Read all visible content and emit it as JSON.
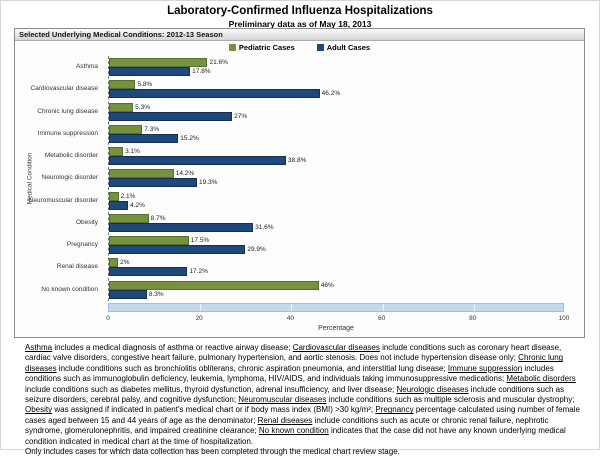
{
  "title": "Laboratory-Confirmed Influenza Hospitalizations",
  "subtitle": "Preliminary data as of May 18, 2013",
  "panel": {
    "header": "Selected Underlying Medical Conditions: 2012-13 Season"
  },
  "legend": [
    {
      "label": "Pediatric Cases",
      "color": "#76923C"
    },
    {
      "label": "Adult Cases",
      "color": "#1F497D"
    }
  ],
  "chart_data": {
    "type": "bar",
    "orientation": "horizontal",
    "title": "Selected Underlying Medical Conditions: 2012-13 Season",
    "xlabel": "Percentage",
    "ylabel": "Medical Condition",
    "xlim": [
      0,
      100
    ],
    "xticks": [
      0,
      20,
      40,
      60,
      80,
      100
    ],
    "grid": false,
    "legend_position": "top-center",
    "categories": [
      "Asthma",
      "Cardiovascular disease",
      "Chronic lung disease",
      "Immune suppression",
      "Metabolic disorder",
      "Neurologic disorder",
      "Neuromuscular disorder",
      "Obesity",
      "Pregnancy",
      "Renal disease",
      "No known condition"
    ],
    "series": [
      {
        "name": "Pediatric Cases",
        "color": "#76923C",
        "values": [
          21.6,
          5.8,
          5.3,
          7.3,
          3.1,
          14.2,
          2.1,
          8.7,
          17.5,
          2,
          46
        ],
        "labels": [
          "21.6%",
          "5.8%",
          "5.3%",
          "7.3%",
          "3.1%",
          "14.2%",
          "2.1%",
          "8.7%",
          "17.5%",
          "2%",
          "46%"
        ]
      },
      {
        "name": "Adult Cases",
        "color": "#1F497D",
        "values": [
          17.8,
          46.2,
          27,
          15.2,
          38.8,
          19.3,
          4.2,
          31.6,
          29.9,
          17.2,
          8.3
        ],
        "labels": [
          "17.8%",
          "46.2%",
          "27%",
          "15.2%",
          "38.8%",
          "19.3%",
          "4.2%",
          "31.6%",
          "29.9%",
          "17.2%",
          "8.3%"
        ]
      }
    ]
  },
  "footnote": {
    "segments": [
      {
        "term": "Asthma",
        "text": " includes a medical diagnosis of asthma or reactive airway disease; "
      },
      {
        "term": "Cardiovascular diseases",
        "text": " include conditions such as coronary heart disease, cardiac valve disorders, congestive heart failure, pulmonary hypertension, and aortic stenosis.  Does not include hypertension disease only;  "
      },
      {
        "term": "Chronic lung diseases",
        "text": " include conditions such as bronchiolitis obliterans, chronic aspiration pneumonia, and interstitial lung disease;  "
      },
      {
        "term": "Immune suppression",
        "text": " includes conditions such as immunoglobulin deficiency, leukemia, lymphoma, HIV/AIDS, and individuals taking immunosuppressive medications;  "
      },
      {
        "term": "Metabolic disorders",
        "text": " include conditions such as diabetes mellitus, thyroid dysfunction, adrenal insufficiency, and liver disease;  "
      },
      {
        "term": "Neurologic diseases",
        "text": " include conditions such as seizure disorders, cerebral palsy, and cognitive dysfunction;  "
      },
      {
        "term": "Neuromuscular diseases",
        "text": " include conditions such as multiple sclerosis and muscular dystrophy;  "
      },
      {
        "term": "Obesity",
        "text": " was assigned if indicated in patient's medical chart or if body mass index (BMI) >30 kg/m²;  "
      },
      {
        "term": "Pregnancy",
        "text": " percentage calculated using number of female cases aged between 15 and 44 years of age as the denominator;  "
      },
      {
        "term": "Renal diseases",
        "text": " include conditions such as acute or chronic renal failure, nephrotic syndrome, glomerulonephritis, and impaired creatinine clearance;  "
      },
      {
        "term": "No known condition",
        "text": " indicates that the case did not have any known underlying medical condition indicated in medical chart at the time of hospitalization."
      }
    ],
    "closing": "Only includes cases for which data collection has been completed through the medical chart review stage."
  }
}
